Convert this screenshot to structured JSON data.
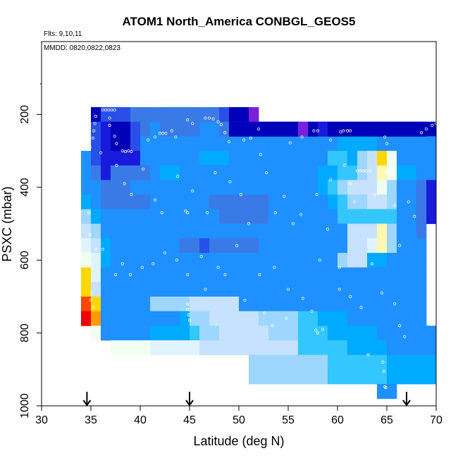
{
  "chart_data": {
    "type": "heatmap",
    "title": "ATOM1 North_America CONBGL_GEOS5",
    "annotations": {
      "flights": "Flts: 9,10,11",
      "dates": "MMDD: 0820,0822,0823"
    },
    "xlabel": "Latitude (deg N)",
    "ylabel": "PSXC (mbar)",
    "xlim": [
      30,
      70
    ],
    "ylim": [
      1000,
      0
    ],
    "x_ticks": [
      "30",
      "35",
      "40",
      "45",
      "50",
      "55",
      "60",
      "65",
      "70"
    ],
    "y_ticks": [
      "200",
      "400",
      "600",
      "800",
      "1000"
    ],
    "x_tick_values": [
      30,
      35,
      40,
      45,
      50,
      55,
      60,
      65,
      70
    ],
    "y_tick_values": [
      200,
      400,
      600,
      800,
      1000
    ],
    "cell_lat_width": 1,
    "cell_p_height": 40,
    "colors": [
      "#7a20d8",
      "#0000b8",
      "#1a1add",
      "#2850e8",
      "#3a7ae6",
      "#1e90ff",
      "#00aaff",
      "#33c6ff",
      "#9dd6ff",
      "#c6e2ff",
      "#e0f4ff",
      "#f0fff0",
      "#fff8b0",
      "#ffd700",
      "#ff9a00",
      "#ff4500",
      "#ee0000"
    ],
    "rows": [
      {
        "p": 200,
        "start": 35,
        "levels": [
          1,
          3,
          3,
          3,
          4,
          4,
          4,
          4,
          4,
          4,
          4,
          4,
          4,
          3,
          1,
          1,
          0
        ]
      },
      {
        "p": 240,
        "start": 35,
        "levels": [
          3,
          2,
          1,
          1,
          3,
          4,
          5,
          4,
          4,
          4,
          4,
          5,
          5,
          4,
          4,
          3,
          2,
          2,
          1,
          1,
          1,
          0,
          0,
          1,
          1,
          1,
          1,
          1,
          1,
          1,
          1,
          1,
          1,
          1,
          1
        ]
      },
      {
        "p": 280,
        "start": 35,
        "levels": [
          3,
          2,
          1,
          1,
          3,
          5,
          5,
          5,
          5,
          5,
          5,
          5,
          5,
          5,
          5,
          5,
          5,
          5,
          5,
          5,
          5,
          5,
          5,
          5,
          5,
          6,
          6,
          6,
          6,
          5,
          5,
          5,
          5,
          5,
          5
        ]
      },
      {
        "p": 320,
        "start": 34,
        "levels": [
          5,
          3,
          2,
          2,
          2,
          2,
          5,
          5,
          5,
          5,
          5,
          5,
          6,
          6,
          6,
          5,
          5,
          5,
          5,
          5,
          5,
          5,
          5,
          5,
          5,
          7,
          7,
          6,
          8,
          9,
          13,
          11,
          5,
          5,
          5,
          5
        ]
      },
      {
        "p": 360,
        "start": 34,
        "levels": [
          5,
          4,
          2,
          4,
          4,
          4,
          4,
          5,
          6,
          6,
          5,
          5,
          5,
          5,
          5,
          5,
          5,
          5,
          5,
          5,
          5,
          5,
          5,
          5,
          6,
          6,
          7,
          7,
          8,
          9,
          12,
          11,
          6,
          6,
          5,
          5
        ]
      },
      {
        "p": 400,
        "start": 34,
        "levels": [
          5,
          5,
          4,
          4,
          4,
          5,
          5,
          5,
          5,
          5,
          5,
          5,
          5,
          5,
          5,
          5,
          5,
          5,
          5,
          5,
          5,
          5,
          5,
          5,
          6,
          7,
          8,
          9,
          9,
          9,
          11,
          8,
          5,
          5,
          4,
          2
        ]
      },
      {
        "p": 440,
        "start": 34,
        "levels": [
          6,
          5,
          4,
          4,
          4,
          4,
          4,
          5,
          5,
          5,
          5,
          5,
          5,
          4,
          4,
          4,
          4,
          4,
          4,
          5,
          5,
          5,
          5,
          5,
          5,
          6,
          7,
          8,
          8,
          9,
          9,
          8,
          5,
          5,
          4,
          2
        ]
      },
      {
        "p": 480,
        "start": 34,
        "levels": [
          8,
          6,
          5,
          5,
          5,
          5,
          5,
          5,
          5,
          5,
          5,
          5,
          5,
          5,
          4,
          4,
          4,
          4,
          4,
          5,
          5,
          5,
          5,
          5,
          5,
          5,
          7,
          7,
          7,
          7,
          7,
          7,
          5,
          5,
          4,
          2
        ]
      },
      {
        "p": 520,
        "start": 34,
        "levels": [
          9,
          8,
          5,
          5,
          5,
          5,
          5,
          5,
          5,
          5,
          5,
          5,
          5,
          5,
          5,
          5,
          5,
          5,
          5,
          5,
          5,
          5,
          5,
          5,
          5,
          5,
          5,
          9,
          9,
          9,
          12,
          8,
          5,
          5,
          4
        ]
      },
      {
        "p": 560,
        "start": 34,
        "levels": [
          10,
          9,
          6,
          5,
          5,
          5,
          5,
          5,
          5,
          5,
          4,
          4,
          3,
          4,
          4,
          4,
          4,
          4,
          5,
          5,
          5,
          5,
          5,
          5,
          5,
          5,
          5,
          9,
          9,
          10,
          12,
          8,
          5,
          5,
          5
        ]
      },
      {
        "p": 600,
        "start": 34,
        "levels": [
          11,
          10,
          6,
          5,
          5,
          5,
          5,
          5,
          5,
          5,
          5,
          5,
          5,
          5,
          5,
          5,
          5,
          5,
          5,
          5,
          5,
          5,
          5,
          5,
          5,
          5,
          8,
          9,
          9,
          6,
          6,
          5,
          5,
          5,
          5
        ]
      },
      {
        "p": 640,
        "start": 34,
        "levels": [
          13,
          10,
          5,
          5,
          5,
          5,
          5,
          5,
          5,
          5,
          5,
          5,
          5,
          5,
          5,
          5,
          5,
          5,
          5,
          5,
          5,
          5,
          5,
          5,
          5,
          5,
          5,
          5,
          5,
          5,
          5,
          5,
          5,
          5,
          5
        ]
      },
      {
        "p": 680,
        "start": 34,
        "levels": [
          13,
          9,
          5,
          5,
          5,
          5,
          5,
          5,
          5,
          5,
          5,
          5,
          5,
          5,
          5,
          5,
          5,
          5,
          5,
          5,
          5,
          5,
          5,
          5,
          5,
          5,
          5,
          5,
          5,
          5,
          5,
          5,
          5,
          5,
          5
        ]
      },
      {
        "p": 720,
        "start": 34,
        "levels": [
          15,
          13,
          5,
          5,
          5,
          5,
          5,
          8,
          8,
          8,
          8,
          9,
          9,
          9,
          9,
          9,
          5,
          5,
          5,
          5,
          5,
          5,
          5,
          5,
          5,
          5,
          5,
          5,
          5,
          5,
          5,
          5,
          5,
          5,
          5
        ]
      },
      {
        "p": 760,
        "start": 34,
        "levels": [
          16,
          14,
          5,
          5,
          5,
          5,
          5,
          5,
          5,
          5,
          6,
          8,
          8,
          9,
          9,
          9,
          9,
          9,
          8,
          8,
          8,
          8,
          7,
          7,
          6,
          6,
          6,
          5,
          5,
          5,
          5,
          5,
          5,
          5,
          5
        ]
      },
      {
        "p": 800,
        "start": 35,
        "levels": [
          11,
          5,
          5,
          5,
          5,
          5,
          6,
          6,
          6,
          6,
          7,
          8,
          8,
          9,
          9,
          9,
          9,
          9,
          8,
          8,
          8,
          7,
          7,
          7,
          6,
          6,
          6,
          6,
          6,
          5,
          5,
          5,
          5,
          5,
          5
        ]
      },
      {
        "p": 840,
        "start": 37,
        "levels": [
          11,
          11,
          11,
          11,
          10,
          10,
          10,
          10,
          10,
          9,
          9,
          9,
          9,
          9,
          9,
          9,
          9,
          9,
          9,
          7,
          7,
          7,
          7,
          7,
          6,
          6,
          6,
          6,
          5,
          5,
          5,
          5,
          5
        ]
      },
      {
        "p": 880,
        "start": 51,
        "levels": [
          8,
          8,
          8,
          8,
          8,
          8,
          8,
          8,
          7,
          7,
          7,
          7,
          7,
          7,
          6,
          6,
          6,
          6,
          6
        ]
      },
      {
        "p": 920,
        "start": 51,
        "levels": [
          8,
          8,
          8,
          8,
          8,
          8,
          8,
          8,
          7,
          7,
          7,
          7,
          7,
          7,
          6,
          6,
          6,
          6,
          6
        ]
      },
      {
        "p": 960,
        "start": 64,
        "levels": [
          5,
          5
        ]
      }
    ],
    "band_rows": [
      {
        "p": 240,
        "start": 49,
        "end": 69,
        "levels": [
          1,
          1,
          1,
          1,
          1,
          1,
          1,
          0,
          1,
          2,
          1,
          1,
          1,
          1,
          1,
          1,
          1,
          1,
          1,
          1
        ]
      }
    ],
    "sample_points": [
      [
        36.2,
        188
      ],
      [
        36.5,
        188
      ],
      [
        36.8,
        188
      ],
      [
        37.1,
        188
      ],
      [
        37.4,
        188
      ],
      [
        35.5,
        205
      ],
      [
        35.4,
        225
      ],
      [
        35.3,
        245
      ],
      [
        35.2,
        265
      ],
      [
        36.9,
        210
      ],
      [
        36.9,
        230
      ],
      [
        37.4,
        260
      ],
      [
        37.6,
        280
      ],
      [
        38.2,
        300
      ],
      [
        38.5,
        302
      ],
      [
        38.8,
        300
      ],
      [
        39.1,
        302
      ],
      [
        40.8,
        270
      ],
      [
        41.5,
        262
      ],
      [
        42.0,
        252
      ],
      [
        42.3,
        252
      ],
      [
        42.6,
        252
      ],
      [
        43.2,
        245
      ],
      [
        43.6,
        262
      ],
      [
        44.8,
        215
      ],
      [
        45.3,
        225
      ],
      [
        46.6,
        210
      ],
      [
        47.0,
        210
      ],
      [
        47.4,
        212
      ],
      [
        47.9,
        220
      ],
      [
        48.2,
        228
      ],
      [
        48.6,
        250
      ],
      [
        49.0,
        275
      ],
      [
        50.5,
        270
      ],
      [
        51.2,
        265
      ],
      [
        52.0,
        240
      ],
      [
        52.2,
        310
      ],
      [
        55.2,
        278
      ],
      [
        56.4,
        262
      ],
      [
        57.6,
        245
      ],
      [
        58.0,
        245
      ],
      [
        59.3,
        270
      ],
      [
        60.3,
        248
      ],
      [
        60.6,
        245
      ],
      [
        61.0,
        245
      ],
      [
        61.3,
        245
      ],
      [
        64.8,
        262
      ],
      [
        65.0,
        280
      ],
      [
        68.5,
        250
      ],
      [
        69.0,
        240
      ],
      [
        69.6,
        230
      ],
      [
        70.0,
        225
      ],
      [
        34.9,
        290
      ],
      [
        36.0,
        305
      ],
      [
        37.6,
        340
      ],
      [
        38.4,
        390
      ],
      [
        39.1,
        420
      ],
      [
        40.3,
        350
      ],
      [
        41.5,
        435
      ],
      [
        42.2,
        470
      ],
      [
        43.8,
        370
      ],
      [
        44.6,
        465
      ],
      [
        44.8,
        470
      ],
      [
        45.3,
        410
      ],
      [
        46.8,
        470
      ],
      [
        47.6,
        360
      ],
      [
        49.1,
        385
      ],
      [
        50.2,
        420
      ],
      [
        51.0,
        500
      ],
      [
        52.8,
        360
      ],
      [
        53.7,
        470
      ],
      [
        54.6,
        425
      ],
      [
        55.5,
        500
      ],
      [
        56.3,
        475
      ],
      [
        57.9,
        420
      ],
      [
        59.0,
        515
      ],
      [
        59.3,
        380
      ],
      [
        60.7,
        340
      ],
      [
        61.3,
        390
      ],
      [
        61.7,
        440
      ],
      [
        62.0,
        355
      ],
      [
        62.3,
        355
      ],
      [
        62.6,
        355
      ],
      [
        62.9,
        355
      ],
      [
        63.3,
        355
      ],
      [
        63.8,
        420
      ],
      [
        64.9,
        358
      ],
      [
        65.2,
        358
      ],
      [
        65.5,
        358
      ],
      [
        65.8,
        450
      ],
      [
        66.3,
        560
      ],
      [
        67.2,
        440
      ],
      [
        67.8,
        480
      ],
      [
        34.8,
        470
      ],
      [
        34.9,
        530
      ],
      [
        35.0,
        610
      ],
      [
        35.5,
        570
      ],
      [
        36.2,
        570
      ],
      [
        37.5,
        640
      ],
      [
        38.2,
        610
      ],
      [
        39.0,
        640
      ],
      [
        40.2,
        620
      ],
      [
        41.3,
        610
      ],
      [
        42.5,
        580
      ],
      [
        43.7,
        600
      ],
      [
        44.8,
        640
      ],
      [
        46.2,
        590
      ],
      [
        46.6,
        680
      ],
      [
        47.9,
        620
      ],
      [
        48.6,
        640
      ],
      [
        49.8,
        560
      ],
      [
        50.6,
        710
      ],
      [
        52.1,
        640
      ],
      [
        53.6,
        620
      ],
      [
        55.0,
        680
      ],
      [
        56.5,
        705
      ],
      [
        57.4,
        740
      ],
      [
        58.5,
        790
      ],
      [
        60.2,
        680
      ],
      [
        61.3,
        700
      ],
      [
        62.4,
        730
      ],
      [
        63.5,
        610
      ],
      [
        64.5,
        690
      ],
      [
        65.8,
        720
      ],
      [
        66.3,
        780
      ],
      [
        66.8,
        810
      ],
      [
        35.1,
        690
      ],
      [
        35.0,
        710
      ],
      [
        35.2,
        730
      ],
      [
        44.8,
        720
      ],
      [
        44.8,
        735
      ],
      [
        44.9,
        750
      ],
      [
        45.0,
        765
      ],
      [
        52.6,
        745
      ],
      [
        53.4,
        780
      ],
      [
        54.8,
        760
      ],
      [
        57.8,
        792
      ],
      [
        58.0,
        800
      ],
      [
        63.1,
        860
      ],
      [
        64.6,
        880
      ],
      [
        64.7,
        905
      ],
      [
        64.8,
        948
      ],
      [
        64.9,
        950
      ],
      [
        60.2,
        620
      ],
      [
        58.2,
        600
      ]
    ],
    "flight_arrows": [
      34.6,
      45.0,
      67.0
    ],
    "grid": false,
    "legend": "none"
  }
}
